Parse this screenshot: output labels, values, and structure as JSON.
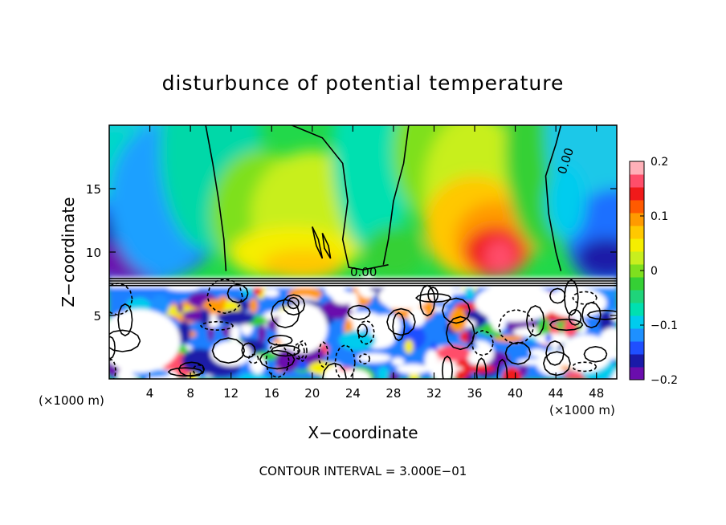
{
  "chart_data": {
    "type": "heatmap",
    "title": "disturbunce of potential temperature",
    "xlabel": "X−coordinate",
    "ylabel": "Z−coordinate",
    "x_unit": "(×1000 m)",
    "x_unit_right": "(×1000 m)",
    "xlim": [
      0,
      50
    ],
    "ylim": [
      0,
      20
    ],
    "x_ticks": [
      4,
      8,
      12,
      16,
      20,
      24,
      28,
      32,
      36,
      40,
      44,
      48
    ],
    "y_ticks": [
      5,
      10,
      15
    ],
    "colorbar": {
      "range": [
        -0.2,
        0.2
      ],
      "ticks": [
        0.2,
        0.1,
        0,
        -0.1,
        -0.2
      ],
      "tick_labels": [
        "0.2",
        "0.1",
        "0",
        "−0.1",
        "−0.2"
      ],
      "colors": [
        "#6a0dad",
        "#1a1aa8",
        "#1f4fff",
        "#1e90ff",
        "#00ccee",
        "#00e0b0",
        "#1fd47a",
        "#35d035",
        "#7ee01e",
        "#c8ef1e",
        "#f5ee00",
        "#ffc800",
        "#ff9a00",
        "#ff5a00",
        "#f01a1a",
        "#ff4e6a",
        "#ffb0b8"
      ]
    },
    "contour_labels": [
      "0.00",
      "0.00"
    ],
    "contour_interval_text": "CONTOUR INTERVAL = 3.000E−01",
    "regions": [
      {
        "name": "upper-left cold anomaly",
        "x_range": [
          0,
          10
        ],
        "z_range": [
          8,
          20
        ],
        "value": -0.15
      },
      {
        "name": "upper-center warm plume",
        "x_range": [
          12,
          28
        ],
        "z_range": [
          8,
          16
        ],
        "value": 0.08
      },
      {
        "name": "upper-right warm anomaly",
        "x_range": [
          34,
          42
        ],
        "z_range": [
          8,
          16
        ],
        "value": 0.17
      },
      {
        "name": "upper-right cold anomaly",
        "x_range": [
          44,
          50
        ],
        "z_range": [
          8,
          20
        ],
        "value": -0.14
      },
      {
        "name": "lower turbulent layer",
        "x_range": [
          0,
          50
        ],
        "z_range": [
          0,
          7.5
        ],
        "value": "mixed"
      }
    ]
  }
}
